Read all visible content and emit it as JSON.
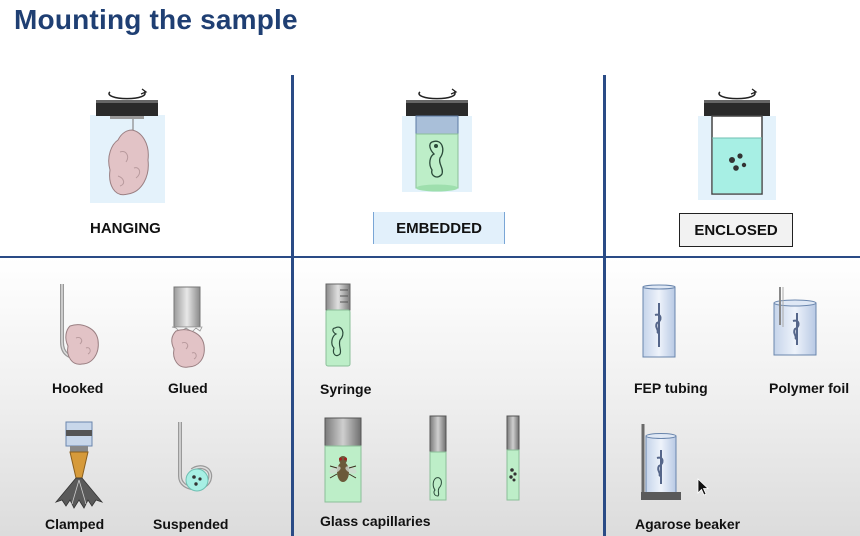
{
  "title": "Mounting the sample",
  "methods": {
    "hanging": "HANGING",
    "embedded": "EMBEDDED",
    "enclosed": "ENCLOSED"
  },
  "hanging_variants": [
    "Hooked",
    "Glued",
    "Clamped",
    "Suspended"
  ],
  "embedded_variants": [
    "Syringe",
    "Glass capillaries"
  ],
  "enclosed_variants": [
    "FEP tubing",
    "Polymer foil",
    "Agarose beaker"
  ],
  "colors": {
    "title": "#1f3f73",
    "divider": "#2a4b86",
    "gel_green": "#b6ecc4",
    "medium_cyan": "#a7efe4",
    "tissue_pink": "#e2c3c6"
  }
}
